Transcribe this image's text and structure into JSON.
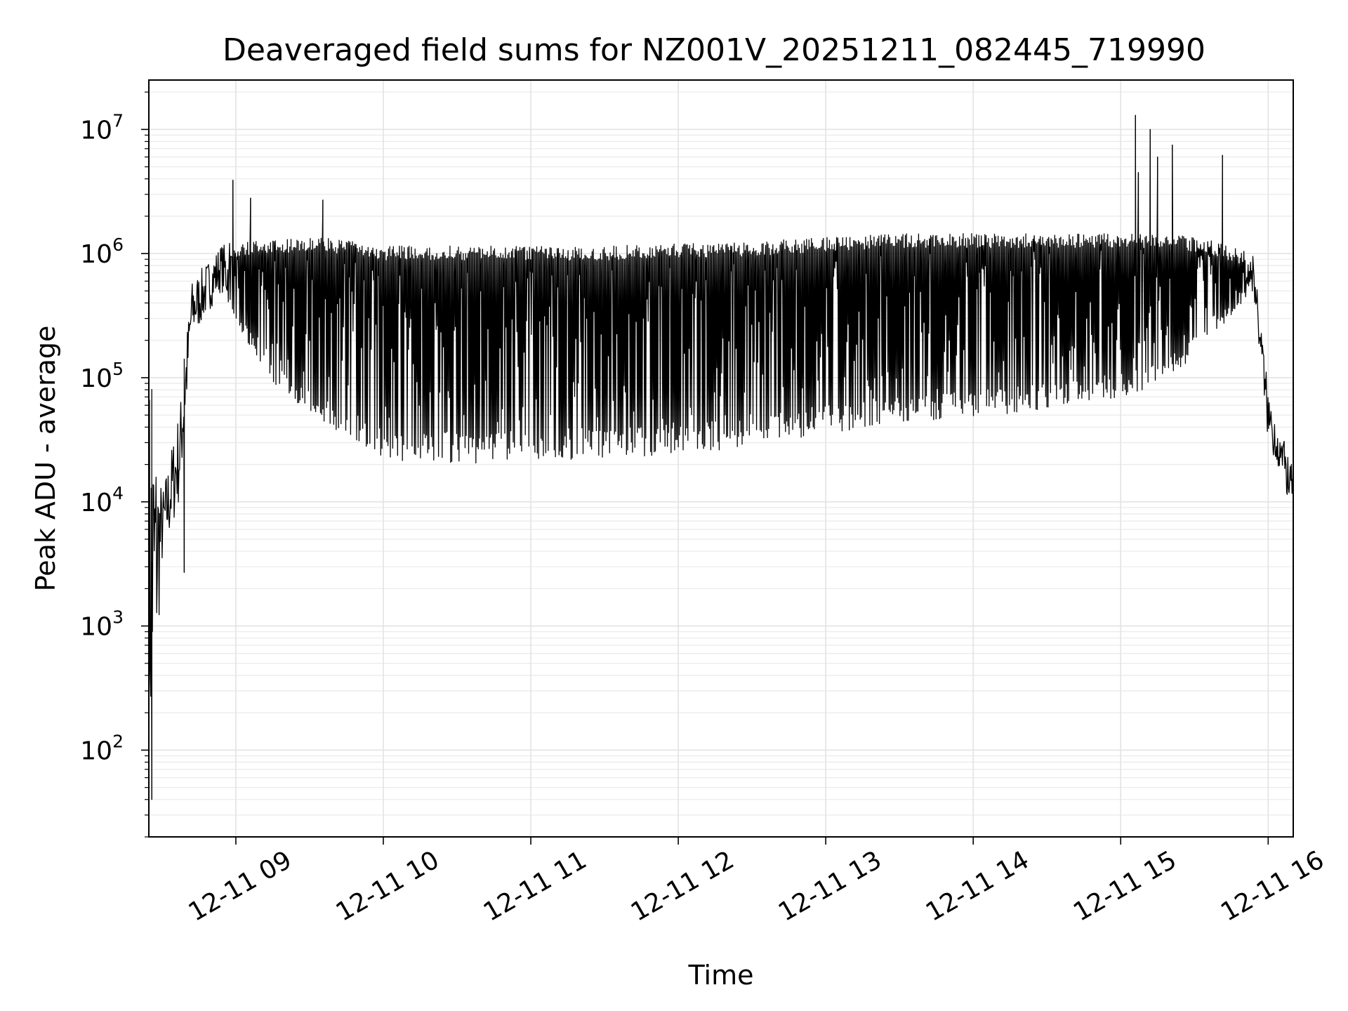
{
  "chart_data": {
    "type": "line",
    "title": "Deaveraged field sums for NZ001V_20251211_082445_719990",
    "xlabel": "Time",
    "ylabel": "Peak ADU - average",
    "yscale": "log",
    "ylim": [
      20,
      25000000
    ],
    "xlim": [
      "12-11 08:24",
      "12-11 16:10"
    ],
    "grid": true,
    "x_ticks": [
      {
        "label": "12-11 09",
        "hour": 9
      },
      {
        "label": "12-11 10",
        "hour": 10
      },
      {
        "label": "12-11 11",
        "hour": 11
      },
      {
        "label": "12-11 12",
        "hour": 12
      },
      {
        "label": "12-11 13",
        "hour": 13
      },
      {
        "label": "12-11 14",
        "hour": 14
      },
      {
        "label": "12-11 15",
        "hour": 15
      },
      {
        "label": "12-11 16",
        "hour": 16
      }
    ],
    "y_ticks": [
      {
        "base": "10",
        "exp": "2",
        "value": 100
      },
      {
        "base": "10",
        "exp": "3",
        "value": 1000
      },
      {
        "base": "10",
        "exp": "4",
        "value": 10000
      },
      {
        "base": "10",
        "exp": "5",
        "value": 100000
      },
      {
        "base": "10",
        "exp": "6",
        "value": 1000000
      },
      {
        "base": "10",
        "exp": "7",
        "value": 10000000
      }
    ],
    "series": [
      {
        "name": "deaveraged field sum",
        "hour_start": 8.41,
        "hour_end": 16.17,
        "envelope_knots": [
          {
            "hour": 8.41,
            "low": 30,
            "high": 140000
          },
          {
            "hour": 8.5,
            "low": 3000,
            "high": 12000
          },
          {
            "hour": 8.62,
            "low": 10000,
            "high": 60000
          },
          {
            "hour": 8.7,
            "low": 200000,
            "high": 600000
          },
          {
            "hour": 8.9,
            "low": 500000,
            "high": 1200000
          },
          {
            "hour": 9.2,
            "low": 100000,
            "high": 1300000
          },
          {
            "hour": 9.6,
            "low": 40000,
            "high": 1350000
          },
          {
            "hour": 10.0,
            "low": 22000,
            "high": 1150000
          },
          {
            "hour": 10.5,
            "low": 20000,
            "high": 1150000
          },
          {
            "hour": 11.0,
            "low": 22000,
            "high": 1150000
          },
          {
            "hour": 11.5,
            "low": 22000,
            "high": 1150000
          },
          {
            "hour": 12.0,
            "low": 24000,
            "high": 1200000
          },
          {
            "hour": 12.5,
            "low": 28000,
            "high": 1250000
          },
          {
            "hour": 13.0,
            "low": 35000,
            "high": 1350000
          },
          {
            "hour": 13.5,
            "low": 42000,
            "high": 1450000
          },
          {
            "hour": 14.0,
            "low": 48000,
            "high": 1450000
          },
          {
            "hour": 14.5,
            "low": 55000,
            "high": 1450000
          },
          {
            "hour": 15.0,
            "low": 70000,
            "high": 1450000
          },
          {
            "hour": 15.3,
            "low": 90000,
            "high": 1450000
          },
          {
            "hour": 15.6,
            "low": 200000,
            "high": 1300000
          },
          {
            "hour": 15.9,
            "low": 500000,
            "high": 1000000
          },
          {
            "hour": 16.0,
            "low": 30000,
            "high": 80000
          },
          {
            "hour": 16.17,
            "low": 8000,
            "high": 18000
          }
        ],
        "spikes": [
          {
            "hour": 8.98,
            "value": 3900000
          },
          {
            "hour": 9.1,
            "value": 2800000
          },
          {
            "hour": 9.59,
            "value": 2700000
          },
          {
            "hour": 15.1,
            "value": 13000000
          },
          {
            "hour": 15.12,
            "value": 4500000
          },
          {
            "hour": 15.2,
            "value": 10000000
          },
          {
            "hour": 15.25,
            "value": 6000000
          },
          {
            "hour": 15.35,
            "value": 7500000
          },
          {
            "hour": 15.69,
            "value": 6200000
          }
        ],
        "dips": [
          {
            "hour": 8.43,
            "value": 40
          },
          {
            "hour": 8.65,
            "value": 2700
          }
        ]
      }
    ]
  }
}
